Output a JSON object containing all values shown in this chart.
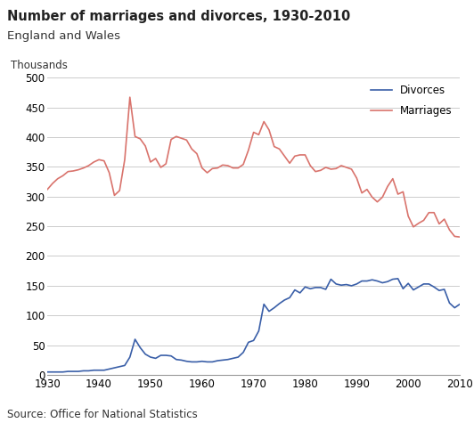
{
  "title": "Number of marriages and divorces, 1930-2010",
  "subtitle": "England and Wales",
  "ylabel": "Thousands",
  "source": "Source: Office for National Statistics",
  "xlim": [
    1930,
    2010
  ],
  "ylim": [
    0,
    500
  ],
  "yticks": [
    0,
    50,
    100,
    150,
    200,
    250,
    300,
    350,
    400,
    450,
    500
  ],
  "xticks": [
    1930,
    1940,
    1950,
    1960,
    1970,
    1980,
    1990,
    2000,
    2010
  ],
  "marriages_color": "#d9736c",
  "divorces_color": "#3a5fa8",
  "marriages": {
    "years": [
      1930,
      1931,
      1932,
      1933,
      1934,
      1935,
      1936,
      1937,
      1938,
      1939,
      1940,
      1941,
      1942,
      1943,
      1944,
      1945,
      1946,
      1947,
      1948,
      1949,
      1950,
      1951,
      1952,
      1953,
      1954,
      1955,
      1956,
      1957,
      1958,
      1959,
      1960,
      1961,
      1962,
      1963,
      1964,
      1965,
      1966,
      1967,
      1968,
      1969,
      1970,
      1971,
      1972,
      1973,
      1974,
      1975,
      1976,
      1977,
      1978,
      1979,
      1980,
      1981,
      1982,
      1983,
      1984,
      1985,
      1986,
      1987,
      1988,
      1989,
      1990,
      1991,
      1992,
      1993,
      1994,
      1995,
      1996,
      1997,
      1998,
      1999,
      2000,
      2001,
      2002,
      2003,
      2004,
      2005,
      2006,
      2007,
      2008,
      2009,
      2010
    ],
    "values": [
      312,
      322,
      330,
      335,
      342,
      343,
      345,
      348,
      352,
      358,
      362,
      360,
      340,
      302,
      310,
      362,
      467,
      401,
      397,
      385,
      358,
      364,
      349,
      355,
      396,
      401,
      398,
      395,
      380,
      372,
      348,
      340,
      347,
      348,
      353,
      352,
      348,
      348,
      354,
      378,
      408,
      404,
      426,
      412,
      384,
      380,
      368,
      356,
      368,
      370,
      370,
      352,
      342,
      344,
      349,
      346,
      347,
      352,
      349,
      346,
      331,
      306,
      312,
      299,
      291,
      299,
      317,
      330,
      304,
      308,
      267,
      249,
      255,
      260,
      273,
      273,
      254,
      262,
      244,
      233,
      232
    ]
  },
  "divorces": {
    "years": [
      1930,
      1931,
      1932,
      1933,
      1934,
      1935,
      1936,
      1937,
      1938,
      1939,
      1940,
      1941,
      1942,
      1943,
      1944,
      1945,
      1946,
      1947,
      1948,
      1949,
      1950,
      1951,
      1952,
      1953,
      1954,
      1955,
      1956,
      1957,
      1958,
      1959,
      1960,
      1961,
      1962,
      1963,
      1964,
      1965,
      1966,
      1967,
      1968,
      1969,
      1970,
      1971,
      1972,
      1973,
      1974,
      1975,
      1976,
      1977,
      1978,
      1979,
      1980,
      1981,
      1982,
      1983,
      1984,
      1985,
      1986,
      1987,
      1988,
      1989,
      1990,
      1991,
      1992,
      1993,
      1994,
      1995,
      1996,
      1997,
      1998,
      1999,
      2000,
      2001,
      2002,
      2003,
      2004,
      2005,
      2006,
      2007,
      2008,
      2009,
      2010
    ],
    "values": [
      5,
      5,
      5,
      5,
      6,
      6,
      6,
      7,
      7,
      8,
      8,
      8,
      10,
      12,
      14,
      16,
      30,
      60,
      46,
      35,
      30,
      28,
      33,
      33,
      32,
      26,
      25,
      23,
      22,
      22,
      23,
      22,
      22,
      24,
      25,
      26,
      28,
      30,
      38,
      55,
      58,
      74,
      119,
      107,
      113,
      120,
      126,
      130,
      143,
      138,
      148,
      145,
      147,
      147,
      144,
      161,
      153,
      151,
      152,
      150,
      153,
      158,
      158,
      160,
      158,
      155,
      157,
      161,
      162,
      145,
      154,
      143,
      148,
      153,
      153,
      148,
      142,
      144,
      121,
      113,
      119
    ]
  },
  "background_color": "#ffffff",
  "grid_color": "#cccccc",
  "spine_color": "#999999"
}
